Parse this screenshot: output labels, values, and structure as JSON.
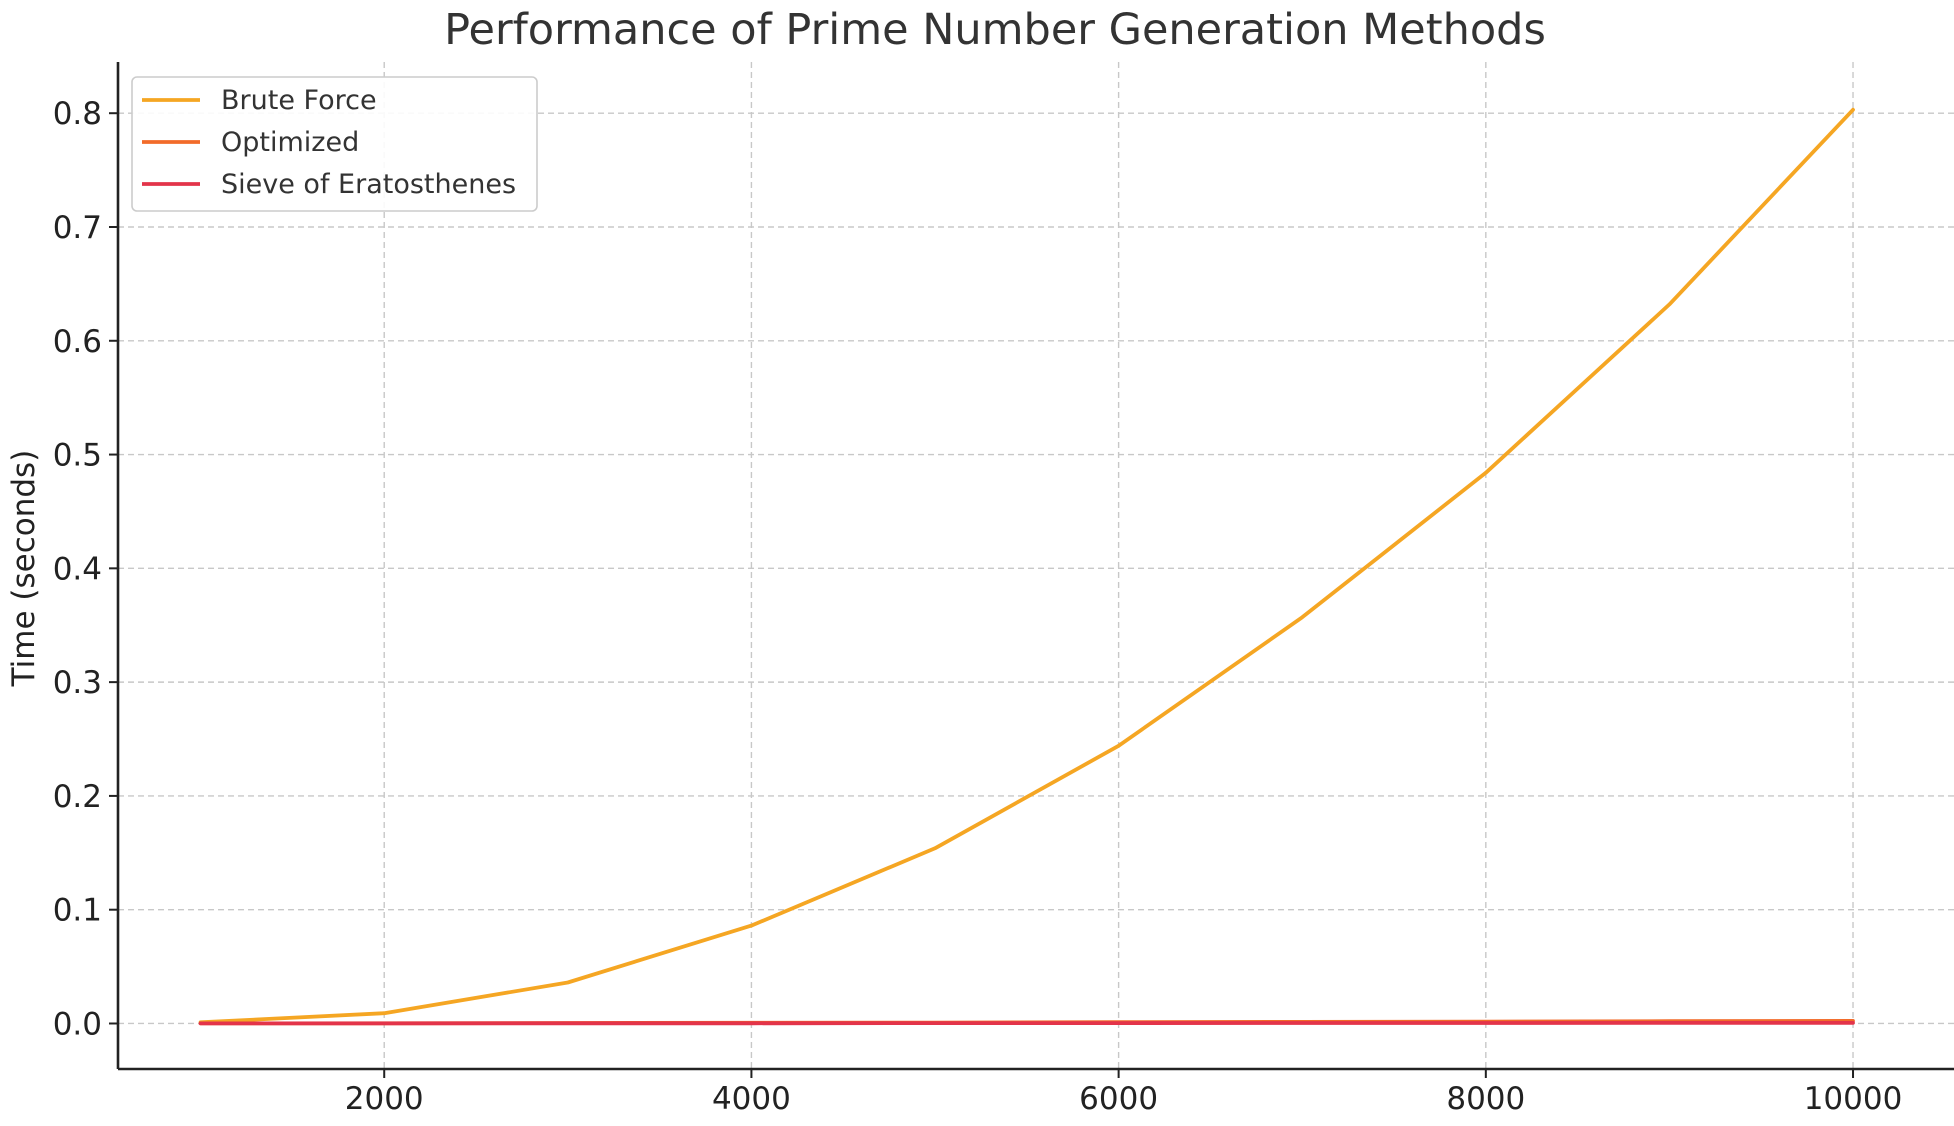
{
  "chart_data": {
    "type": "line",
    "title": "Performance of Prime Number Generation Methods",
    "xlabel": "",
    "ylabel": "Time (seconds)",
    "x": [
      1000,
      2000,
      3000,
      4000,
      5000,
      6000,
      7000,
      8000,
      9000,
      10000
    ],
    "xlim": [
      550,
      10550
    ],
    "ylim": [
      -0.04,
      0.845
    ],
    "xticks": [
      2000,
      4000,
      6000,
      8000,
      10000
    ],
    "yticks": [
      0.0,
      0.1,
      0.2,
      0.3,
      0.4,
      0.5,
      0.6,
      0.7,
      0.8
    ],
    "xtick_labels": [
      "2000",
      "4000",
      "6000",
      "8000",
      "10000"
    ],
    "ytick_labels": [
      "0.0",
      "0.1",
      "0.2",
      "0.3",
      "0.4",
      "0.5",
      "0.6",
      "0.7",
      "0.8"
    ],
    "grid": true,
    "legend_position": "top-left",
    "series": [
      {
        "name": "Brute Force",
        "color": "#F5A623",
        "values": [
          0.001,
          0.009,
          0.036,
          0.086,
          0.154,
          0.244,
          0.357,
          0.484,
          0.632,
          0.803
        ]
      },
      {
        "name": "Optimized",
        "color": "#F26B2A",
        "values": [
          0.0001,
          0.0002,
          0.0004,
          0.0006,
          0.0008,
          0.0011,
          0.0014,
          0.0017,
          0.002,
          0.0023
        ]
      },
      {
        "name": "Sieve of Eratosthenes",
        "color": "#E3344A",
        "values": [
          0.0001,
          0.0001,
          0.0002,
          0.0002,
          0.0003,
          0.0003,
          0.0004,
          0.0004,
          0.0005,
          0.0005
        ]
      }
    ]
  }
}
